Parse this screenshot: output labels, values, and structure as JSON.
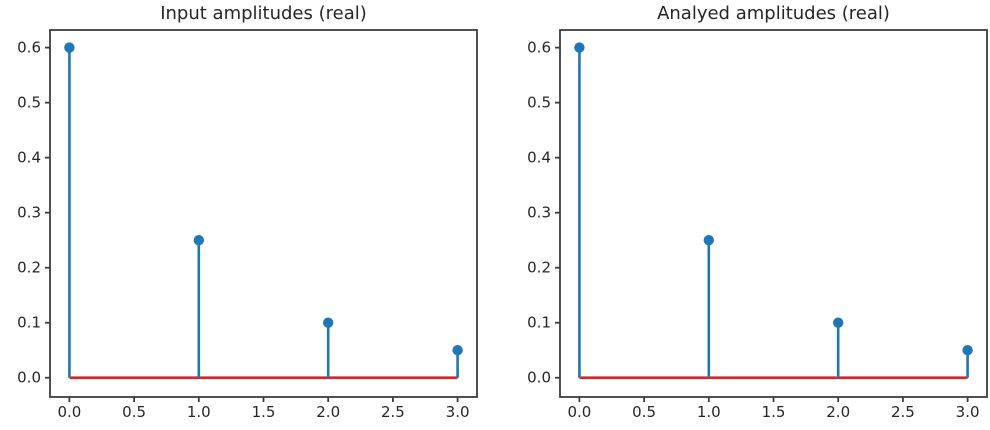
{
  "figure": {
    "background": "#ffffff",
    "colors": {
      "stem": "#1f77b4",
      "baseline": "#d62728",
      "spine": "#3c3c3c",
      "tick_text": "#262626",
      "title_text": "#262626"
    }
  },
  "chart_data": [
    {
      "type": "stem",
      "title": "Input amplitudes (real)",
      "x": [
        0,
        1,
        2,
        3
      ],
      "y": [
        0.6,
        0.25,
        0.1,
        0.05
      ],
      "baseline_y": 0.0,
      "xticks": [
        0.0,
        0.5,
        1.0,
        1.5,
        2.0,
        2.5,
        3.0
      ],
      "xtick_labels": [
        "0.0",
        "0.5",
        "1.0",
        "1.5",
        "2.0",
        "2.5",
        "3.0"
      ],
      "yticks": [
        0.0,
        0.1,
        0.2,
        0.3,
        0.4,
        0.5,
        0.6
      ],
      "ytick_labels": [
        "0.0",
        "0.1",
        "0.2",
        "0.3",
        "0.4",
        "0.5",
        "0.6"
      ],
      "xlim": [
        -0.15,
        3.15
      ],
      "ylim": [
        -0.035,
        0.632
      ],
      "xlabel": "",
      "ylabel": "",
      "grid": false,
      "legend": null
    },
    {
      "type": "stem",
      "title": "Analyed amplitudes (real)",
      "x": [
        0,
        1,
        2,
        3
      ],
      "y": [
        0.6,
        0.25,
        0.1,
        0.05
      ],
      "baseline_y": 0.0,
      "xticks": [
        0.0,
        0.5,
        1.0,
        1.5,
        2.0,
        2.5,
        3.0
      ],
      "xtick_labels": [
        "0.0",
        "0.5",
        "1.0",
        "1.5",
        "2.0",
        "2.5",
        "3.0"
      ],
      "yticks": [
        0.0,
        0.1,
        0.2,
        0.3,
        0.4,
        0.5,
        0.6
      ],
      "ytick_labels": [
        "0.0",
        "0.1",
        "0.2",
        "0.3",
        "0.4",
        "0.5",
        "0.6"
      ],
      "xlim": [
        -0.15,
        3.15
      ],
      "ylim": [
        -0.035,
        0.632
      ],
      "xlabel": "",
      "ylabel": "",
      "grid": false,
      "legend": null
    }
  ]
}
